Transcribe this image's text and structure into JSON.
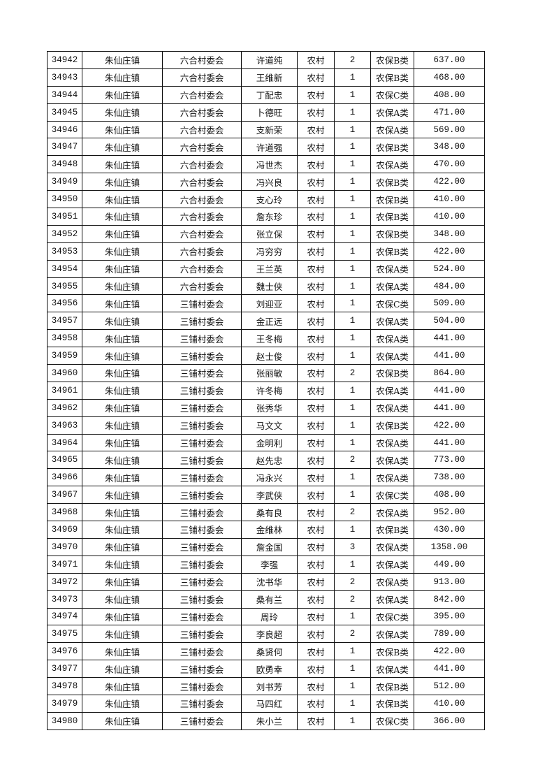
{
  "table": {
    "columns": [
      "id",
      "town",
      "village",
      "name",
      "type",
      "count",
      "category",
      "amount"
    ],
    "rows": [
      [
        "34942",
        "朱仙庄镇",
        "六合村委会",
        "许道纯",
        "农村",
        "2",
        "农保B类",
        "637.00"
      ],
      [
        "34943",
        "朱仙庄镇",
        "六合村委会",
        "王维新",
        "农村",
        "1",
        "农保B类",
        "468.00"
      ],
      [
        "34944",
        "朱仙庄镇",
        "六合村委会",
        "丁配忠",
        "农村",
        "1",
        "农保C类",
        "408.00"
      ],
      [
        "34945",
        "朱仙庄镇",
        "六合村委会",
        "卜德旺",
        "农村",
        "1",
        "农保A类",
        "471.00"
      ],
      [
        "34946",
        "朱仙庄镇",
        "六合村委会",
        "支新荣",
        "农村",
        "1",
        "农保A类",
        "569.00"
      ],
      [
        "34947",
        "朱仙庄镇",
        "六合村委会",
        "许道强",
        "农村",
        "1",
        "农保B类",
        "348.00"
      ],
      [
        "34948",
        "朱仙庄镇",
        "六合村委会",
        "冯世杰",
        "农村",
        "1",
        "农保A类",
        "470.00"
      ],
      [
        "34949",
        "朱仙庄镇",
        "六合村委会",
        "冯兴良",
        "农村",
        "1",
        "农保B类",
        "422.00"
      ],
      [
        "34950",
        "朱仙庄镇",
        "六合村委会",
        "支心玲",
        "农村",
        "1",
        "农保B类",
        "410.00"
      ],
      [
        "34951",
        "朱仙庄镇",
        "六合村委会",
        "詹东珍",
        "农村",
        "1",
        "农保B类",
        "410.00"
      ],
      [
        "34952",
        "朱仙庄镇",
        "六合村委会",
        "张立保",
        "农村",
        "1",
        "农保B类",
        "348.00"
      ],
      [
        "34953",
        "朱仙庄镇",
        "六合村委会",
        "冯穷穷",
        "农村",
        "1",
        "农保B类",
        "422.00"
      ],
      [
        "34954",
        "朱仙庄镇",
        "六合村委会",
        "王兰英",
        "农村",
        "1",
        "农保A类",
        "524.00"
      ],
      [
        "34955",
        "朱仙庄镇",
        "六合村委会",
        "魏士侠",
        "农村",
        "1",
        "农保A类",
        "484.00"
      ],
      [
        "34956",
        "朱仙庄镇",
        "三铺村委会",
        "刘迎亚",
        "农村",
        "1",
        "农保C类",
        "509.00"
      ],
      [
        "34957",
        "朱仙庄镇",
        "三铺村委会",
        "金正远",
        "农村",
        "1",
        "农保A类",
        "504.00"
      ],
      [
        "34958",
        "朱仙庄镇",
        "三铺村委会",
        "王冬梅",
        "农村",
        "1",
        "农保A类",
        "441.00"
      ],
      [
        "34959",
        "朱仙庄镇",
        "三铺村委会",
        "赵士俊",
        "农村",
        "1",
        "农保A类",
        "441.00"
      ],
      [
        "34960",
        "朱仙庄镇",
        "三铺村委会",
        "张丽敏",
        "农村",
        "2",
        "农保B类",
        "864.00"
      ],
      [
        "34961",
        "朱仙庄镇",
        "三铺村委会",
        "许冬梅",
        "农村",
        "1",
        "农保A类",
        "441.00"
      ],
      [
        "34962",
        "朱仙庄镇",
        "三铺村委会",
        "张秀华",
        "农村",
        "1",
        "农保A类",
        "441.00"
      ],
      [
        "34963",
        "朱仙庄镇",
        "三铺村委会",
        "马文文",
        "农村",
        "1",
        "农保B类",
        "422.00"
      ],
      [
        "34964",
        "朱仙庄镇",
        "三铺村委会",
        "金明利",
        "农村",
        "1",
        "农保A类",
        "441.00"
      ],
      [
        "34965",
        "朱仙庄镇",
        "三铺村委会",
        "赵先忠",
        "农村",
        "2",
        "农保A类",
        "773.00"
      ],
      [
        "34966",
        "朱仙庄镇",
        "三铺村委会",
        "冯永兴",
        "农村",
        "1",
        "农保A类",
        "738.00"
      ],
      [
        "34967",
        "朱仙庄镇",
        "三铺村委会",
        "李武侠",
        "农村",
        "1",
        "农保C类",
        "408.00"
      ],
      [
        "34968",
        "朱仙庄镇",
        "三铺村委会",
        "桑有良",
        "农村",
        "2",
        "农保A类",
        "952.00"
      ],
      [
        "34969",
        "朱仙庄镇",
        "三铺村委会",
        "金维林",
        "农村",
        "1",
        "农保B类",
        "430.00"
      ],
      [
        "34970",
        "朱仙庄镇",
        "三铺村委会",
        "詹金国",
        "农村",
        "3",
        "农保A类",
        "1358.00"
      ],
      [
        "34971",
        "朱仙庄镇",
        "三铺村委会",
        "李强",
        "农村",
        "1",
        "农保A类",
        "449.00"
      ],
      [
        "34972",
        "朱仙庄镇",
        "三铺村委会",
        "沈书华",
        "农村",
        "2",
        "农保A类",
        "913.00"
      ],
      [
        "34973",
        "朱仙庄镇",
        "三铺村委会",
        "桑有兰",
        "农村",
        "2",
        "农保A类",
        "842.00"
      ],
      [
        "34974",
        "朱仙庄镇",
        "三铺村委会",
        "周玲",
        "农村",
        "1",
        "农保C类",
        "395.00"
      ],
      [
        "34975",
        "朱仙庄镇",
        "三铺村委会",
        "李良超",
        "农村",
        "2",
        "农保A类",
        "789.00"
      ],
      [
        "34976",
        "朱仙庄镇",
        "三铺村委会",
        "桑贤何",
        "农村",
        "1",
        "农保B类",
        "422.00"
      ],
      [
        "34977",
        "朱仙庄镇",
        "三铺村委会",
        "欧勇幸",
        "农村",
        "1",
        "农保A类",
        "441.00"
      ],
      [
        "34978",
        "朱仙庄镇",
        "三铺村委会",
        "刘书芳",
        "农村",
        "1",
        "农保B类",
        "512.00"
      ],
      [
        "34979",
        "朱仙庄镇",
        "三铺村委会",
        "马四红",
        "农村",
        "1",
        "农保B类",
        "410.00"
      ],
      [
        "34980",
        "朱仙庄镇",
        "三铺村委会",
        "朱小兰",
        "农村",
        "1",
        "农保C类",
        "366.00"
      ]
    ]
  }
}
